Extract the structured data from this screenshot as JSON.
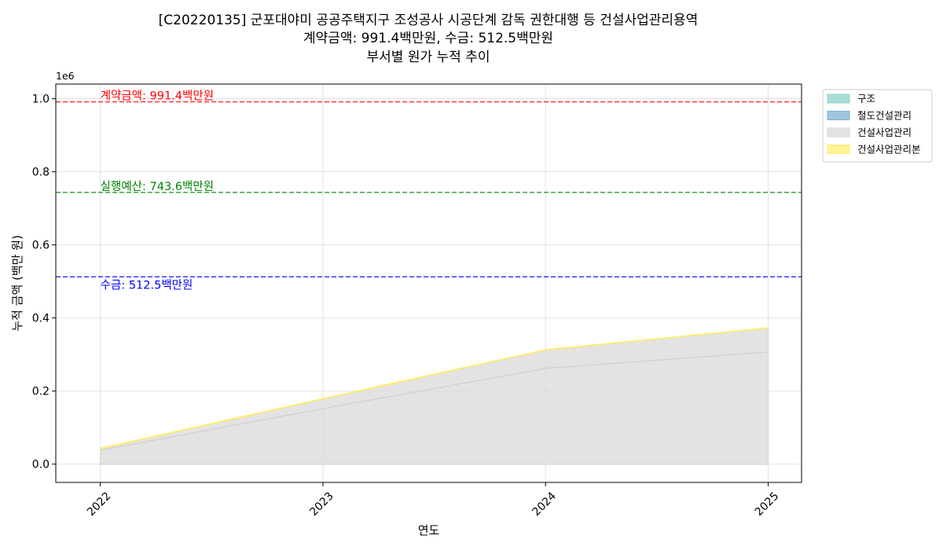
{
  "chart_data": {
    "type": "area",
    "title_lines": [
      "[C20220135] 군포대야미 공공주택지구 조성공사 시공단계 감독 권한대행 등 건설사업관리용역",
      "계약금액: 991.4백만원, 수금: 512.5백만원",
      "부서별 원가 누적 추이"
    ],
    "xlabel": "연도",
    "ylabel": "누적 금액 (백만 원)",
    "y_offset_text": "1e6",
    "x": [
      2022,
      2023,
      2024,
      2025
    ],
    "x_tick_labels": [
      "2022",
      "2023",
      "2024",
      "2025"
    ],
    "xlim": [
      2021.8,
      2025.15
    ],
    "ylim": [
      -50000,
      1040000
    ],
    "y_ticks": [
      0,
      200000,
      400000,
      600000,
      800000,
      1000000
    ],
    "y_tick_labels": [
      "0.0",
      "0.2",
      "0.4",
      "0.6",
      "0.8",
      "1.0"
    ],
    "grid": true,
    "legend_position": "outside-top-right",
    "series": [
      {
        "name": "구조",
        "color": "#8dd3c7",
        "values": [
          0,
          0,
          0,
          0
        ]
      },
      {
        "name": "철도건설관리",
        "color": "#80b1d3",
        "values": [
          0,
          0,
          0,
          0
        ]
      },
      {
        "name": "건설사업관리",
        "color": "#d9d9d9",
        "values": [
          42000,
          178000,
          312000,
          372000
        ]
      },
      {
        "name": "건설사업관리본",
        "color": "#ffed6f",
        "values": [
          1500,
          1500,
          1500,
          1500
        ]
      }
    ],
    "inner_line": {
      "color": "#cfcfcf",
      "values": [
        38000,
        152000,
        262000,
        307000
      ]
    },
    "reference_lines": [
      {
        "label": "계약금액: 991.4백만원",
        "value": 991400,
        "color": "#ff0000"
      },
      {
        "label": "실행예산: 743.6백만원",
        "value": 743600,
        "color": "#008000"
      },
      {
        "label": "수금: 512.5백만원",
        "value": 512500,
        "color": "#0000ff"
      }
    ]
  }
}
